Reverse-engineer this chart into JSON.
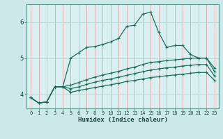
{
  "title": "",
  "xlabel": "Humidex (Indice chaleur)",
  "bg_color": "#cce8e8",
  "plot_bg_color": "#d8f0f0",
  "line_color": "#1a6e60",
  "grid_color_v": "#e8a0a0",
  "grid_color_h": "#b8d4d4",
  "series": [
    [
      3.9,
      3.75,
      3.78,
      4.2,
      4.2,
      5.0,
      5.15,
      5.3,
      5.32,
      5.38,
      5.45,
      5.55,
      5.88,
      5.92,
      6.22,
      6.28,
      5.72,
      5.3,
      5.35,
      5.35,
      5.1,
      5.0,
      5.0,
      4.72
    ],
    [
      3.9,
      3.75,
      3.78,
      4.2,
      4.2,
      4.25,
      4.32,
      4.4,
      4.47,
      4.53,
      4.58,
      4.63,
      4.7,
      4.75,
      4.82,
      4.88,
      4.9,
      4.93,
      4.95,
      4.97,
      5.0,
      5.0,
      5.0,
      4.62
    ],
    [
      3.9,
      3.75,
      3.78,
      4.2,
      4.2,
      4.15,
      4.2,
      4.27,
      4.33,
      4.38,
      4.42,
      4.47,
      4.52,
      4.57,
      4.62,
      4.67,
      4.7,
      4.73,
      4.75,
      4.78,
      4.8,
      4.82,
      4.82,
      4.5
    ],
    [
      3.9,
      3.75,
      3.78,
      4.2,
      4.2,
      4.05,
      4.1,
      4.14,
      4.18,
      4.22,
      4.26,
      4.3,
      4.35,
      4.38,
      4.42,
      4.46,
      4.48,
      4.51,
      4.53,
      4.55,
      4.58,
      4.6,
      4.6,
      4.38
    ]
  ],
  "ylim": [
    3.6,
    6.5
  ],
  "xlim": [
    -0.5,
    23.5
  ],
  "yticks": [
    4,
    5,
    6
  ],
  "xticks": [
    0,
    1,
    2,
    3,
    4,
    5,
    6,
    7,
    8,
    9,
    10,
    11,
    12,
    13,
    14,
    15,
    16,
    17,
    18,
    19,
    20,
    21,
    22,
    23
  ]
}
